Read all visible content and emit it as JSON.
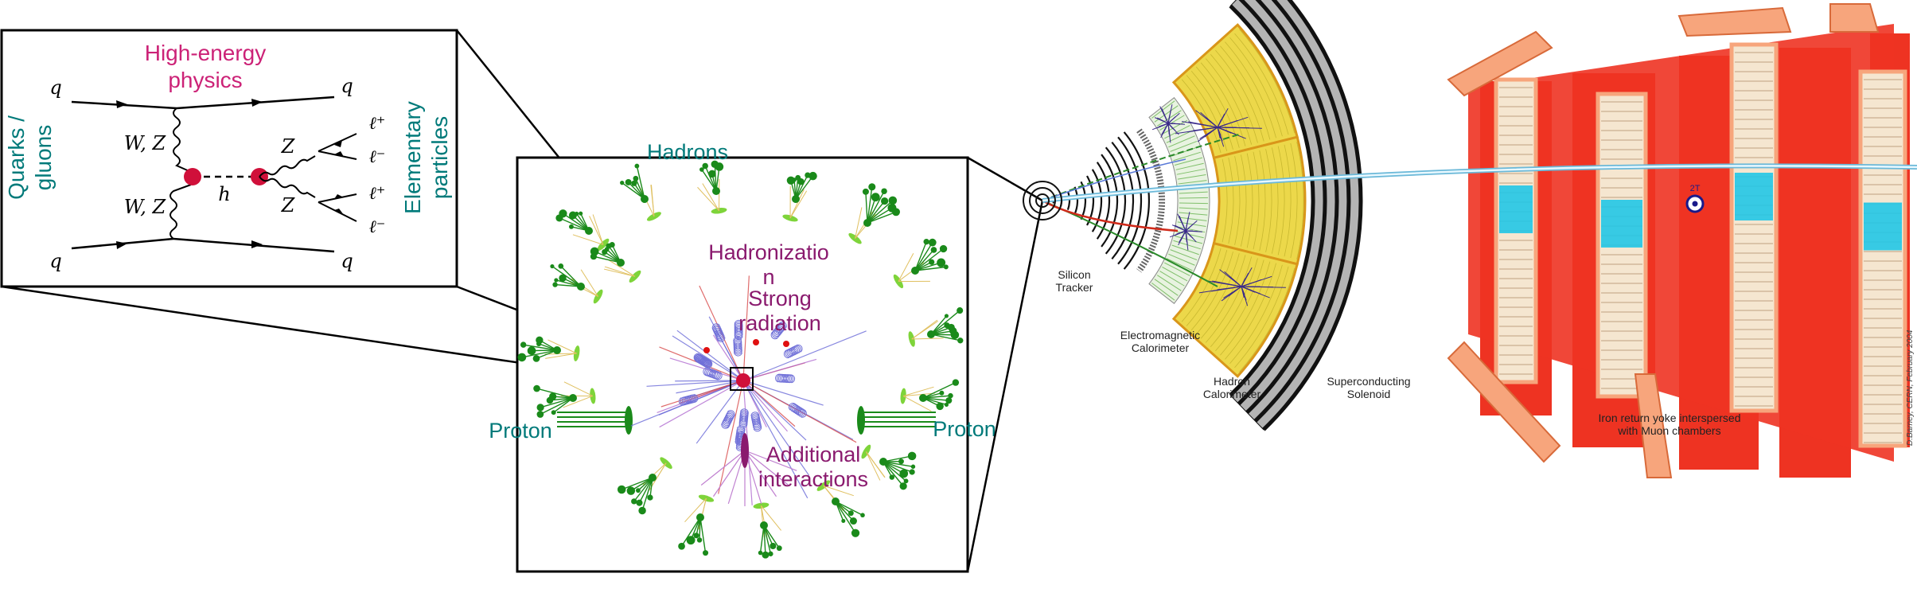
{
  "feynman": {
    "title_line1": "High-energy",
    "title_line2": "physics",
    "left_label_line1": "Quarks /",
    "left_label_line2": "gluons",
    "right_label_line1": "Elementary",
    "right_label_line2": "particles",
    "q_top_left": "q",
    "q_top_right": "q",
    "q_bottom_left": "q",
    "q_bottom_right": "q",
    "wz_top": "W, Z",
    "wz_bottom": "W, Z",
    "higgs": "h",
    "z_top": "Z",
    "z_bottom": "Z",
    "lep1": "ℓ⁺",
    "lep2": "ℓ⁻",
    "lep3": "ℓ⁺",
    "lep4": "ℓ⁻"
  },
  "event": {
    "hadrons": "Hadrons",
    "hadronization": "Hadronizatio\nn",
    "strong_radiation": "Strong\nradiation",
    "proton_left": "Proton",
    "proton_right": "Proton",
    "additional_interactions": "Additional\ninteractions"
  },
  "detector": {
    "silicon_tracker": "Silicon\nTracker",
    "em_calorimeter": "Electromagnetic\nCalorimeter",
    "hadron_calorimeter": "Hadron\nCalorimeter",
    "solenoid": "Superconducting\nSolenoid",
    "iron_yoke": "Iron return yoke interspersed\nwith Muon chambers",
    "field": "2T",
    "credit": "D.Barney, CERN, February 2004"
  },
  "colors": {
    "title_magenta": "#cc2277",
    "teal": "#007a7a",
    "purple": "#8a1a6e",
    "vertex_red": "#d0103a",
    "yellow_cal": "#ecd84a",
    "muon_red": "#ee3322",
    "yoke_frame": "#f7a57c",
    "muon_cyan": "#22c6e6",
    "green_hadron": "#1a8a1a"
  }
}
